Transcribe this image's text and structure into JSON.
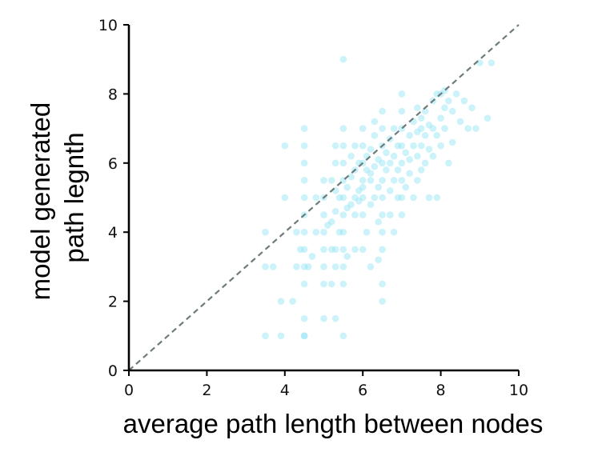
{
  "chart_data": {
    "type": "scatter",
    "xlabel": "average path length between nodes",
    "ylabel_lines": [
      "model generated",
      "path legnth"
    ],
    "xlim": [
      0,
      10
    ],
    "ylim": [
      0,
      10
    ],
    "xticks": [
      "0",
      "2",
      "4",
      "6",
      "8",
      "10"
    ],
    "yticks": [
      "0",
      "2",
      "4",
      "6",
      "8",
      "10"
    ],
    "grid": false,
    "legend": "none",
    "reference_line": {
      "from": [
        0,
        0
      ],
      "to": [
        10,
        10
      ],
      "style": "dashed",
      "color": "#6e7b7b"
    },
    "point_color": "#8fe3f5",
    "points": [
      [
        3.5,
        1
      ],
      [
        3.5,
        3
      ],
      [
        3.5,
        4
      ],
      [
        3.7,
        3
      ],
      [
        3.9,
        1
      ],
      [
        3.9,
        2
      ],
      [
        4.0,
        5
      ],
      [
        4.0,
        6.5
      ],
      [
        4.2,
        2
      ],
      [
        4.3,
        3
      ],
      [
        4.3,
        4
      ],
      [
        4.4,
        3.5
      ],
      [
        4.5,
        1
      ],
      [
        4.5,
        1
      ],
      [
        4.5,
        1.5
      ],
      [
        4.5,
        2.5
      ],
      [
        4.5,
        3
      ],
      [
        4.5,
        3.5
      ],
      [
        4.5,
        4
      ],
      [
        4.5,
        4.5
      ],
      [
        4.5,
        5
      ],
      [
        4.5,
        5.5
      ],
      [
        4.5,
        6
      ],
      [
        4.5,
        6.5
      ],
      [
        4.5,
        7
      ],
      [
        4.6,
        3
      ],
      [
        4.7,
        3.3
      ],
      [
        4.8,
        4
      ],
      [
        4.8,
        5
      ],
      [
        5.0,
        1.5
      ],
      [
        5.0,
        2.5
      ],
      [
        5.0,
        3
      ],
      [
        5.0,
        3.5
      ],
      [
        5.0,
        4
      ],
      [
        5.0,
        4.5
      ],
      [
        5.0,
        5
      ],
      [
        5.0,
        5.5
      ],
      [
        5.1,
        4.2
      ],
      [
        5.2,
        2.5
      ],
      [
        5.2,
        3.5
      ],
      [
        5.2,
        4.3
      ],
      [
        5.2,
        5.5
      ],
      [
        5.3,
        1.5
      ],
      [
        5.3,
        3
      ],
      [
        5.3,
        3.5
      ],
      [
        5.3,
        4.6
      ],
      [
        5.3,
        5.2
      ],
      [
        5.3,
        6
      ],
      [
        5.3,
        6.5
      ],
      [
        5.4,
        4
      ],
      [
        5.4,
        5
      ],
      [
        5.5,
        1
      ],
      [
        5.5,
        2.5
      ],
      [
        5.5,
        3
      ],
      [
        5.5,
        3.5
      ],
      [
        5.5,
        4
      ],
      [
        5.5,
        4.5
      ],
      [
        5.5,
        5
      ],
      [
        5.5,
        5.5
      ],
      [
        5.5,
        6
      ],
      [
        5.5,
        6.5
      ],
      [
        5.5,
        7
      ],
      [
        5.5,
        9
      ],
      [
        5.6,
        4.7
      ],
      [
        5.6,
        5.3
      ],
      [
        5.6,
        3.3
      ],
      [
        5.7,
        4.8
      ],
      [
        5.7,
        5.6
      ],
      [
        5.7,
        6.2
      ],
      [
        5.8,
        3.5
      ],
      [
        5.8,
        4.5
      ],
      [
        5.8,
        5
      ],
      [
        5.8,
        5.8
      ],
      [
        5.8,
        6.5
      ],
      [
        5.9,
        5.2
      ],
      [
        5.9,
        6
      ],
      [
        6.0,
        3.5
      ],
      [
        6.0,
        4.5
      ],
      [
        6.0,
        5
      ],
      [
        6.0,
        5.5
      ],
      [
        6.0,
        6
      ],
      [
        6.0,
        6.5
      ],
      [
        6.0,
        7
      ],
      [
        6.0,
        5.3
      ],
      [
        6.1,
        4
      ],
      [
        6.1,
        5.8
      ],
      [
        6.1,
        6.2
      ],
      [
        6.2,
        3
      ],
      [
        6.2,
        4.8
      ],
      [
        6.2,
        5.5
      ],
      [
        6.2,
        6.4
      ],
      [
        6.3,
        5
      ],
      [
        6.3,
        5.9
      ],
      [
        6.3,
        6.8
      ],
      [
        6.3,
        7.2
      ],
      [
        6.4,
        3.2
      ],
      [
        6.4,
        4.3
      ],
      [
        6.4,
        5.3
      ],
      [
        6.4,
        6.1
      ],
      [
        6.5,
        2.5
      ],
      [
        6.5,
        3.5
      ],
      [
        6.5,
        4
      ],
      [
        6.5,
        4.5
      ],
      [
        6.5,
        5
      ],
      [
        6.5,
        5.5
      ],
      [
        6.5,
        6
      ],
      [
        6.5,
        6.5
      ],
      [
        6.5,
        7
      ],
      [
        6.5,
        7.5
      ],
      [
        6.5,
        2
      ],
      [
        6.6,
        5.8
      ],
      [
        6.6,
        6.3
      ],
      [
        6.7,
        4.5
      ],
      [
        6.7,
        5.2
      ],
      [
        6.7,
        6
      ],
      [
        6.7,
        6.7
      ],
      [
        6.8,
        4
      ],
      [
        6.8,
        5.5
      ],
      [
        6.8,
        6.2
      ],
      [
        6.8,
        7
      ],
      [
        6.9,
        5
      ],
      [
        6.9,
        5.8
      ],
      [
        6.9,
        6.5
      ],
      [
        7.0,
        4.5
      ],
      [
        7.0,
        5
      ],
      [
        7.0,
        5.5
      ],
      [
        7.0,
        6
      ],
      [
        7.0,
        6.5
      ],
      [
        7.0,
        7
      ],
      [
        7.0,
        7.5
      ],
      [
        7.0,
        8
      ],
      [
        7.1,
        5.3
      ],
      [
        7.1,
        6.3
      ],
      [
        7.2,
        5.7
      ],
      [
        7.2,
        6.1
      ],
      [
        7.2,
        6.8
      ],
      [
        7.3,
        5
      ],
      [
        7.3,
        6.5
      ],
      [
        7.3,
        7.2
      ],
      [
        7.4,
        5.5
      ],
      [
        7.4,
        6.2
      ],
      [
        7.4,
        7.6
      ],
      [
        7.5,
        5.8
      ],
      [
        7.5,
        6.5
      ],
      [
        7.5,
        7
      ],
      [
        7.5,
        7.3
      ],
      [
        7.6,
        6
      ],
      [
        7.6,
        6.8
      ],
      [
        7.6,
        7.5
      ],
      [
        7.7,
        5
      ],
      [
        7.7,
        6.4
      ],
      [
        7.7,
        7.1
      ],
      [
        7.8,
        6.2
      ],
      [
        7.8,
        7
      ],
      [
        7.8,
        7.8
      ],
      [
        7.9,
        5
      ],
      [
        7.9,
        6.8
      ],
      [
        8.0,
        6.5
      ],
      [
        8.0,
        7.3
      ],
      [
        8.0,
        8
      ],
      [
        8.1,
        7
      ],
      [
        8.1,
        7.6
      ],
      [
        8.2,
        6
      ],
      [
        8.2,
        7.8
      ],
      [
        8.3,
        6.6
      ],
      [
        8.3,
        7.5
      ],
      [
        8.4,
        8
      ],
      [
        8.5,
        7.2
      ],
      [
        8.6,
        7.8
      ],
      [
        8.7,
        7
      ],
      [
        8.8,
        7.6
      ],
      [
        9.0,
        8.9
      ],
      [
        9.2,
        7.3
      ],
      [
        9.3,
        8.9
      ],
      [
        8.9,
        7.0
      ],
      [
        7.9,
        8.0
      ],
      [
        8.1,
        8.1
      ],
      [
        7.4,
        6.9
      ],
      [
        6.2,
        5.7
      ],
      [
        5.9,
        4.9
      ]
    ]
  }
}
